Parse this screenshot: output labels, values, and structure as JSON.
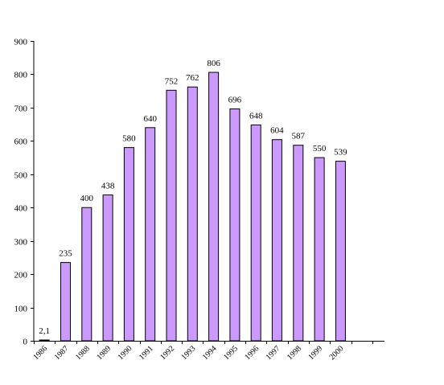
{
  "chart_data": {
    "type": "bar",
    "title": "",
    "xlabel": "",
    "ylabel": "",
    "categories": [
      "1986",
      "1987",
      "1988",
      "1989",
      "1990",
      "1991",
      "1992",
      "1993",
      "1994",
      "1995",
      "1996",
      "1997",
      "1998",
      "1999",
      "2000"
    ],
    "values": [
      2.1,
      235,
      400,
      438,
      580,
      640,
      752,
      762,
      806,
      696,
      648,
      604,
      587,
      550,
      539
    ],
    "value_labels": [
      "2,1",
      "235",
      "400",
      "438",
      "580",
      "640",
      "752",
      "762",
      "806",
      "696",
      "648",
      "604",
      "587",
      "550",
      "539"
    ],
    "ylim": [
      0,
      900
    ],
    "yticks": [
      0,
      100,
      200,
      300,
      400,
      500,
      600,
      700,
      800,
      900
    ],
    "ytick_labels": [
      "0",
      "100",
      "200",
      "300",
      "400",
      "500",
      "600",
      "700",
      "800",
      "900"
    ],
    "grid": false,
    "legend": "none",
    "bar_color": "#cc99ff",
    "bar_border_color": "#000000"
  }
}
